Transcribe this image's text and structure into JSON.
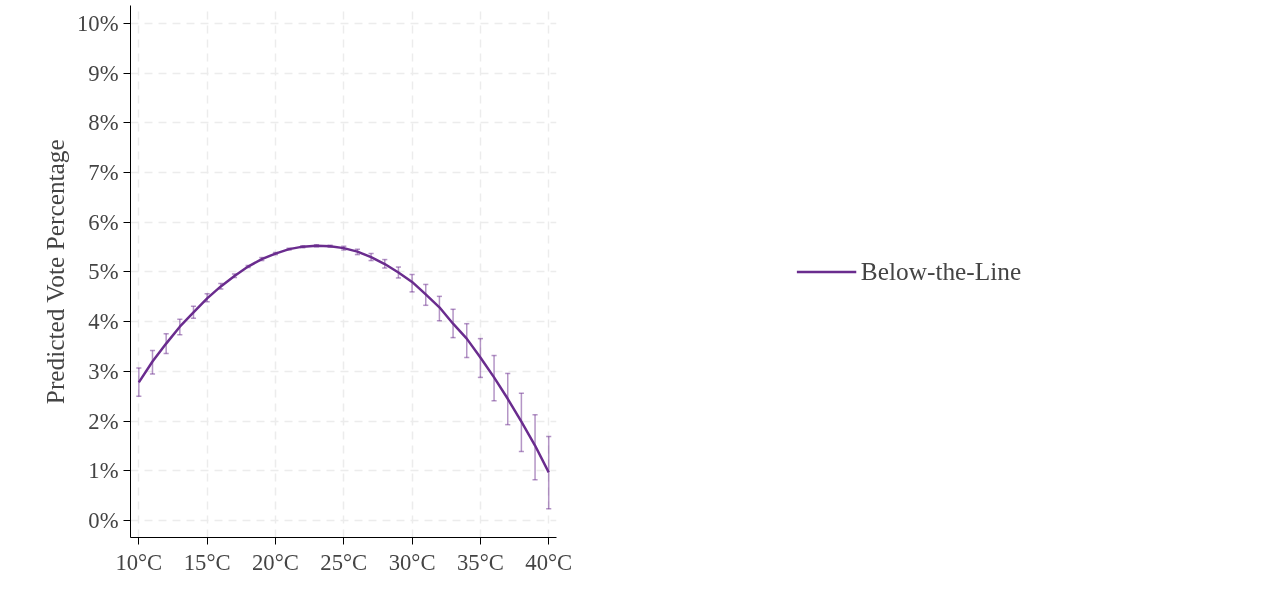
{
  "chart_data": {
    "type": "line",
    "ylabel": "Predicted Vote Percentage",
    "x": [
      10,
      11,
      12,
      13,
      14,
      15,
      16,
      17,
      18,
      19,
      20,
      21,
      22,
      23,
      24,
      25,
      26,
      27,
      28,
      29,
      30,
      31,
      32,
      33,
      34,
      35,
      36,
      37,
      38,
      39,
      40
    ],
    "series": [
      {
        "name": "Below-the-Line",
        "color": "#6a2c8e",
        "values": [
          2.78,
          3.2,
          3.56,
          3.9,
          4.19,
          4.47,
          4.71,
          4.92,
          5.11,
          5.26,
          5.37,
          5.46,
          5.51,
          5.53,
          5.52,
          5.48,
          5.41,
          5.3,
          5.16,
          4.99,
          4.8,
          4.55,
          4.29,
          3.96,
          3.66,
          3.28,
          2.88,
          2.45,
          1.99,
          1.51,
          0.97
        ],
        "errors": [
          [
            2.5,
            3.07
          ],
          [
            2.95,
            3.42
          ],
          [
            3.36,
            3.76
          ],
          [
            3.74,
            4.05
          ],
          [
            4.07,
            4.31
          ],
          [
            4.4,
            4.56
          ],
          [
            4.66,
            4.77
          ],
          [
            4.89,
            4.96
          ],
          [
            5.09,
            5.13
          ],
          [
            5.23,
            5.29
          ],
          [
            5.35,
            5.39
          ],
          [
            5.44,
            5.48
          ],
          [
            5.49,
            5.53
          ],
          [
            5.51,
            5.55
          ],
          [
            5.5,
            5.54
          ],
          [
            5.44,
            5.52
          ],
          [
            5.35,
            5.46
          ],
          [
            5.23,
            5.37
          ],
          [
            5.08,
            5.25
          ],
          [
            4.88,
            5.1
          ],
          [
            4.6,
            4.95
          ],
          [
            4.33,
            4.75
          ],
          [
            4.02,
            4.51
          ],
          [
            3.68,
            4.25
          ],
          [
            3.28,
            3.96
          ],
          [
            2.88,
            3.66
          ],
          [
            2.41,
            3.32
          ],
          [
            1.93,
            2.96
          ],
          [
            1.39,
            2.56
          ],
          [
            0.82,
            2.13
          ],
          [
            0.24,
            1.69
          ]
        ]
      }
    ],
    "xlim": [
      9.39,
      40.57
    ],
    "ylim": [
      -0.34,
      10.36
    ],
    "xticks": [
      {
        "value": 10,
        "label": "10°C"
      },
      {
        "value": 15,
        "label": "15°C"
      },
      {
        "value": 20,
        "label": "20°C"
      },
      {
        "value": 25,
        "label": "25°C"
      },
      {
        "value": 30,
        "label": "30°C"
      },
      {
        "value": 35,
        "label": "35°C"
      },
      {
        "value": 40,
        "label": "40°C"
      }
    ],
    "yticks": [
      {
        "value": 0,
        "label": "0%"
      },
      {
        "value": 1,
        "label": "1%"
      },
      {
        "value": 2,
        "label": "2%"
      },
      {
        "value": 3,
        "label": "3%"
      },
      {
        "value": 4,
        "label": "4%"
      },
      {
        "value": 5,
        "label": "5%"
      },
      {
        "value": 6,
        "label": "6%"
      },
      {
        "value": 7,
        "label": "7%"
      },
      {
        "value": 8,
        "label": "8%"
      },
      {
        "value": 9,
        "label": "9%"
      },
      {
        "value": 10,
        "label": "10%"
      }
    ],
    "grid": true,
    "legend": "right",
    "line_style": "solid",
    "marker": "none"
  }
}
